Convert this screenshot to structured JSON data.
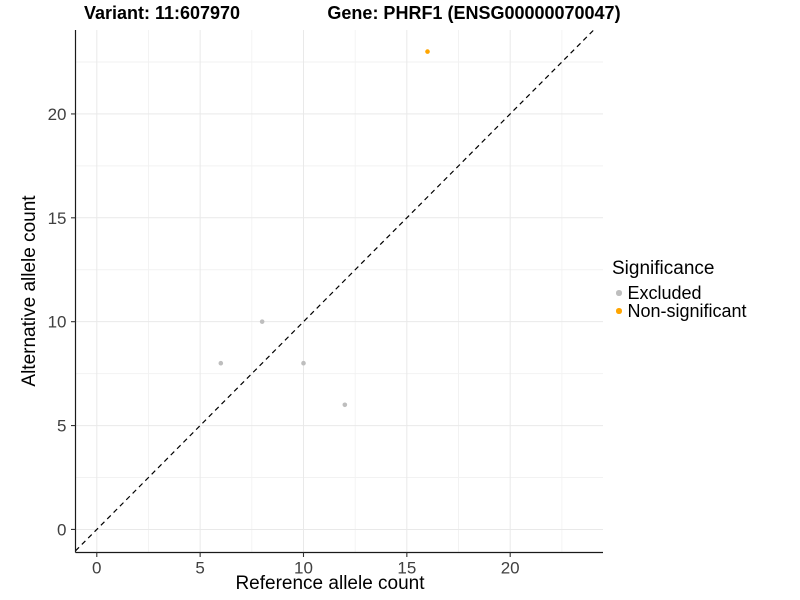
{
  "titles": {
    "variant": "Variant: 11:607970",
    "gene": "Gene: PHRF1 (ENSG00000070047)"
  },
  "chart_data": {
    "type": "scatter",
    "xlabel": "Reference allele count",
    "ylabel": "Alternative allele count",
    "xlim": [
      -1.03,
      24.49
    ],
    "ylim": [
      -1.11,
      24.04
    ],
    "xticks": [
      0,
      5,
      10,
      15,
      20
    ],
    "yticks": [
      0,
      5,
      10,
      15,
      20
    ],
    "x_minor_ticks": [
      2.5,
      7.5,
      12.5,
      17.5,
      22.5
    ],
    "y_minor_ticks": [
      2.5,
      7.5,
      12.5,
      17.5,
      22.5
    ],
    "grid": true,
    "series": [
      {
        "name": "Excluded",
        "color": "#bebebe",
        "points": [
          [
            6,
            8
          ],
          [
            8,
            10
          ],
          [
            10,
            8
          ],
          [
            12,
            6
          ]
        ]
      },
      {
        "name": "Non-significant",
        "color": "#ffa500",
        "points": [
          [
            16,
            23
          ]
        ]
      }
    ],
    "identity_line": {
      "show": true,
      "slope": 1,
      "intercept": 0,
      "style": "dashed",
      "color": "#000000"
    },
    "legend": {
      "title": "Significance",
      "position": "right"
    },
    "style": {
      "grid_major_color": "#e9e9e9",
      "grid_minor_color": "#f2f2f2",
      "axis_line_color": "#1a1a1a",
      "tick_color": "#333333",
      "tick_label_color": "#404040",
      "background": "#ffffff"
    }
  }
}
